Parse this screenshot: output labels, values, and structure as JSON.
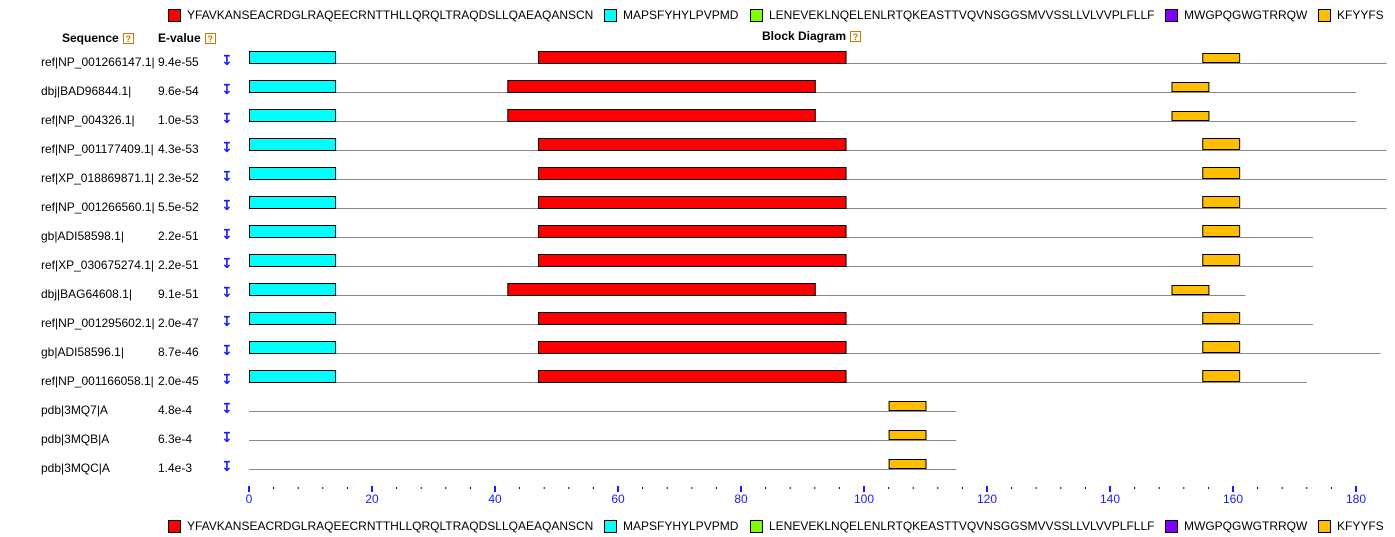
{
  "legend": [
    {
      "label": "YFAVKANSEACRDGLRAQEECRNTTHLLQRQLTRAQDSLLQAEAQANSCN",
      "color": "#ff0000"
    },
    {
      "label": "MAPSFYHYLPVPMD",
      "color": "#00ffff"
    },
    {
      "label": "LENEVEKLNQELENLRTQKEASTTVQVNSGGSMVVSSLLVLVVPLFLLF",
      "color": "#7fff00"
    },
    {
      "label": "MWGPQGWGTRRQW",
      "color": "#8000ff"
    },
    {
      "label": "KFYYFS",
      "color": "#ffbf00"
    }
  ],
  "headers": {
    "sequence": "Sequence",
    "evalue": "E-value",
    "diagram": "Block Diagram",
    "help": "?"
  },
  "expand_glyph": "↧",
  "axis": {
    "min": 0,
    "max": 180,
    "major_step": 20,
    "minor_step": 4,
    "tick_labels": [
      "0",
      "20",
      "40",
      "60",
      "80",
      "100",
      "120",
      "140",
      "160",
      "180"
    ]
  },
  "rows": [
    {
      "seq": "ref|NP_001266147.1|",
      "evalue": "9.4e-55",
      "length": 185,
      "blocks": [
        {
          "motif": "cyan",
          "start": 0,
          "end": 14
        },
        {
          "motif": "red",
          "start": 47,
          "end": 97
        },
        {
          "motif": "orange",
          "start": 155,
          "end": 161,
          "offset": 2
        }
      ]
    },
    {
      "seq": "dbj|BAD96844.1|",
      "evalue": "9.6e-54",
      "length": 180,
      "blocks": [
        {
          "motif": "cyan",
          "start": 0,
          "end": 14
        },
        {
          "motif": "red",
          "start": 42,
          "end": 92
        },
        {
          "motif": "orange",
          "start": 150,
          "end": 156,
          "offset": 2
        }
      ]
    },
    {
      "seq": "ref|NP_004326.1|",
      "evalue": "1.0e-53",
      "length": 180,
      "blocks": [
        {
          "motif": "cyan",
          "start": 0,
          "end": 14
        },
        {
          "motif": "red",
          "start": 42,
          "end": 92
        },
        {
          "motif": "orange",
          "start": 150,
          "end": 156,
          "offset": 2
        }
      ]
    },
    {
      "seq": "ref|NP_001177409.1|",
      "evalue": "4.3e-53",
      "length": 185,
      "blocks": [
        {
          "motif": "cyan",
          "start": 0,
          "end": 14
        },
        {
          "motif": "red",
          "start": 47,
          "end": 97
        },
        {
          "motif": "orange",
          "start": 155,
          "end": 161,
          "offset": 0
        }
      ]
    },
    {
      "seq": "ref|XP_018869871.1|",
      "evalue": "2.3e-52",
      "length": 185,
      "blocks": [
        {
          "motif": "cyan",
          "start": 0,
          "end": 14
        },
        {
          "motif": "red",
          "start": 47,
          "end": 97
        },
        {
          "motif": "orange",
          "start": 155,
          "end": 161,
          "offset": 0
        }
      ]
    },
    {
      "seq": "ref|NP_001266560.1|",
      "evalue": "5.5e-52",
      "length": 185,
      "blocks": [
        {
          "motif": "cyan",
          "start": 0,
          "end": 14
        },
        {
          "motif": "red",
          "start": 47,
          "end": 97
        },
        {
          "motif": "orange",
          "start": 155,
          "end": 161,
          "offset": 0
        }
      ]
    },
    {
      "seq": "gb|ADI58598.1|",
      "evalue": "2.2e-51",
      "length": 173,
      "blocks": [
        {
          "motif": "cyan",
          "start": 0,
          "end": 14
        },
        {
          "motif": "red",
          "start": 47,
          "end": 97
        },
        {
          "motif": "orange",
          "start": 155,
          "end": 161,
          "offset": 0
        }
      ]
    },
    {
      "seq": "ref|XP_030675274.1|",
      "evalue": "2.2e-51",
      "length": 173,
      "blocks": [
        {
          "motif": "cyan",
          "start": 0,
          "end": 14
        },
        {
          "motif": "red",
          "start": 47,
          "end": 97
        },
        {
          "motif": "orange",
          "start": 155,
          "end": 161,
          "offset": 0
        }
      ]
    },
    {
      "seq": "dbj|BAG64608.1|",
      "evalue": "9.1e-51",
      "length": 162,
      "blocks": [
        {
          "motif": "cyan",
          "start": 0,
          "end": 14
        },
        {
          "motif": "red",
          "start": 42,
          "end": 92
        },
        {
          "motif": "orange",
          "start": 150,
          "end": 156,
          "offset": 2
        }
      ]
    },
    {
      "seq": "ref|NP_001295602.1|",
      "evalue": "2.0e-47",
      "length": 173,
      "blocks": [
        {
          "motif": "cyan",
          "start": 0,
          "end": 14
        },
        {
          "motif": "red",
          "start": 47,
          "end": 97
        },
        {
          "motif": "orange",
          "start": 155,
          "end": 161,
          "offset": 0
        }
      ]
    },
    {
      "seq": "gb|ADI58596.1|",
      "evalue": "8.7e-46",
      "length": 184,
      "blocks": [
        {
          "motif": "cyan",
          "start": 0,
          "end": 14
        },
        {
          "motif": "red",
          "start": 47,
          "end": 97
        },
        {
          "motif": "orange",
          "start": 155,
          "end": 161,
          "offset": 0
        }
      ]
    },
    {
      "seq": "ref|NP_001166058.1|",
      "evalue": "2.0e-45",
      "length": 172,
      "blocks": [
        {
          "motif": "cyan",
          "start": 0,
          "end": 14
        },
        {
          "motif": "red",
          "start": 47,
          "end": 97
        },
        {
          "motif": "orange",
          "start": 155,
          "end": 161,
          "offset": 0
        }
      ]
    },
    {
      "seq": "pdb|3MQ7|A",
      "evalue": "4.8e-4",
      "length": 115,
      "blocks": [
        {
          "motif": "orange",
          "start": 104,
          "end": 110,
          "offset": 2
        }
      ]
    },
    {
      "seq": "pdb|3MQB|A",
      "evalue": "6.3e-4",
      "length": 115,
      "blocks": [
        {
          "motif": "orange",
          "start": 104,
          "end": 110,
          "offset": 2
        }
      ]
    },
    {
      "seq": "pdb|3MQC|A",
      "evalue": "1.4e-3",
      "length": 115,
      "blocks": [
        {
          "motif": "orange",
          "start": 104,
          "end": 110,
          "offset": 2
        }
      ]
    }
  ],
  "motif_colors": {
    "red": "#ff0000",
    "cyan": "#00ffff",
    "orange": "#ffbf00"
  }
}
